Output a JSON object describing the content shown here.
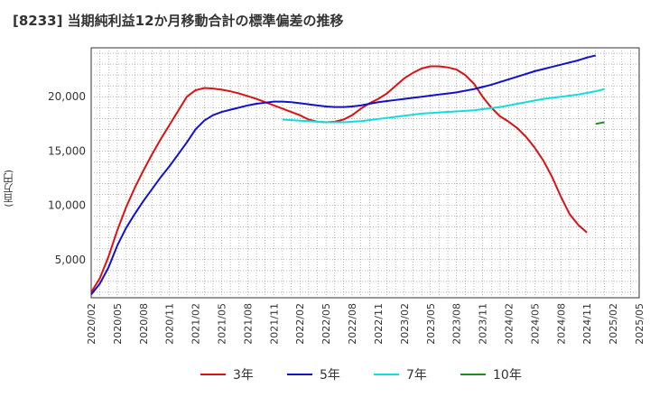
{
  "chart_data": {
    "type": "line",
    "title": "[8233]  当期純利益12か月移動合計の標準偏差の推移",
    "ylabel": "(百万円)",
    "xlabel": "",
    "ylim": [
      1500,
      24500
    ],
    "yticks": [
      5000,
      10000,
      15000,
      20000
    ],
    "ytick_labels": [
      "5,000",
      "10,000",
      "15,000",
      "20,000"
    ],
    "x_range": [
      "2020-02",
      "2025-05"
    ],
    "xtick_labels": [
      "2020/02",
      "2020/05",
      "2020/08",
      "2020/11",
      "2021/02",
      "2021/05",
      "2021/08",
      "2021/11",
      "2022/02",
      "2022/05",
      "2022/08",
      "2022/11",
      "2023/02",
      "2023/05",
      "2023/08",
      "2023/11",
      "2024/02",
      "2024/05",
      "2024/08",
      "2024/11",
      "2025/02",
      "2025/05"
    ],
    "grid": true,
    "legend_position": "bottom",
    "series": [
      {
        "name": "3年",
        "color": "#dd1111",
        "x": [
          "2020-02",
          "2020-03",
          "2020-04",
          "2020-05",
          "2020-06",
          "2020-07",
          "2020-08",
          "2020-09",
          "2020-10",
          "2020-11",
          "2020-12",
          "2021-01",
          "2021-02",
          "2021-03",
          "2021-04",
          "2021-05",
          "2021-06",
          "2021-07",
          "2021-08",
          "2021-09",
          "2021-10",
          "2021-11",
          "2021-12",
          "2022-01",
          "2022-02",
          "2022-03",
          "2022-04",
          "2022-05",
          "2022-06",
          "2022-07",
          "2022-08",
          "2022-09",
          "2022-10",
          "2022-11",
          "2022-12",
          "2023-01",
          "2023-02",
          "2023-03",
          "2023-04",
          "2023-05",
          "2023-06",
          "2023-07",
          "2023-08",
          "2023-09",
          "2023-10",
          "2023-11",
          "2023-12",
          "2024-01",
          "2024-02",
          "2024-03",
          "2024-04",
          "2024-05",
          "2024-06",
          "2024-07",
          "2024-08",
          "2024-09",
          "2024-10",
          "2024-11",
          "2024-12",
          "2025-01",
          "2025-02"
        ],
        "values": [
          2000,
          3300,
          5300,
          7700,
          9800,
          11600,
          13200,
          14700,
          16100,
          17400,
          18700,
          20000,
          20600,
          20800,
          20750,
          20650,
          20500,
          20300,
          20050,
          19800,
          19500,
          19200,
          18900,
          18600,
          18300,
          17900,
          17700,
          17650,
          17700,
          17900,
          18300,
          18900,
          19400,
          19800,
          20300,
          21000,
          21700,
          22200,
          22600,
          22800,
          22800,
          22700,
          22500,
          22000,
          21200,
          20000,
          19000,
          18200,
          17700,
          17100,
          16300,
          15300,
          14100,
          12600,
          10800,
          9200,
          8200,
          7500,
          null,
          null,
          null
        ]
      },
      {
        "name": "5年",
        "color": "#1111cc",
        "x": [
          "2020-02",
          "2020-03",
          "2020-04",
          "2020-05",
          "2020-06",
          "2020-07",
          "2020-08",
          "2020-09",
          "2020-10",
          "2020-11",
          "2020-12",
          "2021-01",
          "2021-02",
          "2021-03",
          "2021-04",
          "2021-05",
          "2021-06",
          "2021-07",
          "2021-08",
          "2021-09",
          "2021-10",
          "2021-11",
          "2021-12",
          "2022-01",
          "2022-02",
          "2022-03",
          "2022-04",
          "2022-05",
          "2022-06",
          "2022-07",
          "2022-08",
          "2022-09",
          "2022-10",
          "2022-11",
          "2022-12",
          "2023-01",
          "2023-02",
          "2023-03",
          "2023-04",
          "2023-05",
          "2023-06",
          "2023-07",
          "2023-08",
          "2023-09",
          "2023-10",
          "2023-11",
          "2023-12",
          "2024-01",
          "2024-02",
          "2024-03",
          "2024-04",
          "2024-05",
          "2024-06",
          "2024-07",
          "2024-08",
          "2024-09",
          "2024-10",
          "2024-11",
          "2024-12",
          "2025-01",
          "2025-02"
        ],
        "values": [
          1800,
          2800,
          4300,
          6300,
          7900,
          9200,
          10400,
          11500,
          12600,
          13600,
          14700,
          15800,
          17000,
          17800,
          18300,
          18600,
          18800,
          19000,
          19200,
          19350,
          19450,
          19550,
          19550,
          19500,
          19400,
          19300,
          19200,
          19100,
          19050,
          19050,
          19100,
          19200,
          19350,
          19500,
          19600,
          19700,
          19800,
          19900,
          20000,
          20100,
          20200,
          20300,
          20400,
          20550,
          20700,
          20900,
          21100,
          21350,
          21600,
          21850,
          22100,
          22350,
          22550,
          22750,
          22950,
          23150,
          23350,
          23600,
          23800,
          null,
          null
        ]
      },
      {
        "name": "7年",
        "color": "#11dddd",
        "x": [
          "2021-12",
          "2022-01",
          "2022-02",
          "2022-03",
          "2022-04",
          "2022-05",
          "2022-06",
          "2022-07",
          "2022-08",
          "2022-09",
          "2022-10",
          "2022-11",
          "2022-12",
          "2023-01",
          "2023-02",
          "2023-03",
          "2023-04",
          "2023-05",
          "2023-06",
          "2023-07",
          "2023-08",
          "2023-09",
          "2023-10",
          "2023-11",
          "2023-12",
          "2024-01",
          "2024-02",
          "2024-03",
          "2024-04",
          "2024-05",
          "2024-06",
          "2024-07",
          "2024-08",
          "2024-09",
          "2024-10",
          "2024-11",
          "2024-12",
          "2025-01",
          "2025-02"
        ],
        "values": [
          17900,
          17850,
          17800,
          17750,
          17700,
          17650,
          17650,
          17650,
          17700,
          17750,
          17850,
          17950,
          18050,
          18150,
          18250,
          18350,
          18450,
          18500,
          18550,
          18600,
          18650,
          18700,
          18750,
          18850,
          18950,
          19050,
          19200,
          19350,
          19500,
          19650,
          19800,
          19900,
          20000,
          20100,
          20200,
          20350,
          20500,
          20700,
          null
        ]
      },
      {
        "name": "10年",
        "color": "#228822",
        "x": [
          "2024-12",
          "2025-01",
          "2025-02"
        ],
        "values": [
          17500,
          17650,
          null
        ]
      }
    ]
  }
}
